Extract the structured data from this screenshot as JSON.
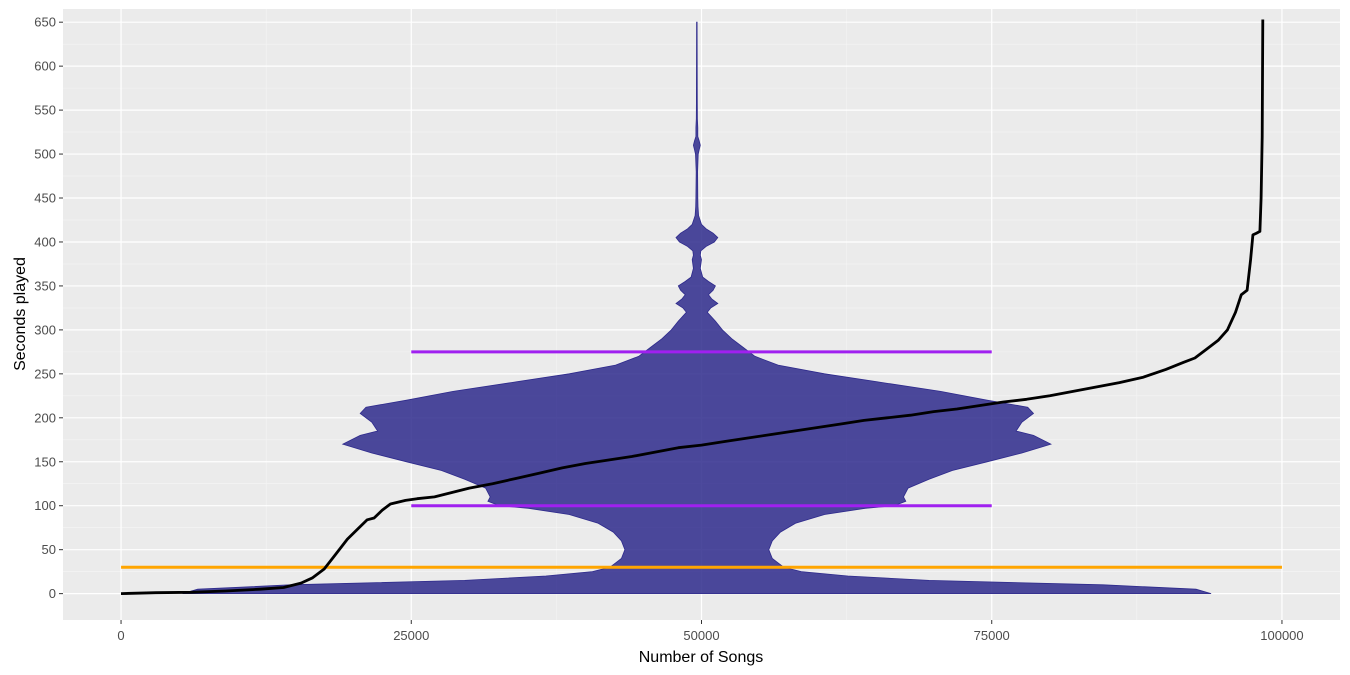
{
  "chart_data": {
    "type": "line",
    "title": "",
    "xlabel": "Number of Songs",
    "ylabel": "Seconds played",
    "xlim": [
      -5000,
      105000
    ],
    "ylim": [
      -30,
      665
    ],
    "x_ticks": [
      0,
      25000,
      50000,
      75000,
      100000
    ],
    "x_tick_labels": [
      "0",
      "25000",
      "50000",
      "75000",
      "100000"
    ],
    "y_ticks": [
      0,
      50,
      100,
      150,
      200,
      250,
      300,
      350,
      400,
      450,
      500,
      550,
      600,
      650
    ],
    "y_tick_labels": [
      "0",
      "50",
      "100",
      "150",
      "200",
      "250",
      "300",
      "350",
      "400",
      "450",
      "500",
      "550",
      "600",
      "650"
    ],
    "grid": true,
    "legend": "none",
    "violin": {
      "name": "",
      "center_x": 49600,
      "color": "#2e2a8c",
      "profile": [
        [
          0,
          44300
        ],
        [
          5,
          43000
        ],
        [
          10,
          35000
        ],
        [
          15,
          20000
        ],
        [
          20,
          13000
        ],
        [
          25,
          9000
        ],
        [
          30,
          7500
        ],
        [
          35,
          7000
        ],
        [
          40,
          6500
        ],
        [
          50,
          6200
        ],
        [
          60,
          6500
        ],
        [
          70,
          7200
        ],
        [
          80,
          8500
        ],
        [
          90,
          11000
        ],
        [
          97,
          14500
        ],
        [
          100,
          17000
        ],
        [
          105,
          18000
        ],
        [
          110,
          17800
        ],
        [
          120,
          18200
        ],
        [
          130,
          20000
        ],
        [
          140,
          22000
        ],
        [
          150,
          25000
        ],
        [
          160,
          28000
        ],
        [
          170,
          30500
        ],
        [
          180,
          29000
        ],
        [
          185,
          27500
        ],
        [
          195,
          28000
        ],
        [
          205,
          29000
        ],
        [
          212,
          28500
        ],
        [
          220,
          25000
        ],
        [
          230,
          21000
        ],
        [
          240,
          16000
        ],
        [
          250,
          11000
        ],
        [
          260,
          7000
        ],
        [
          270,
          5000
        ],
        [
          280,
          4000
        ],
        [
          290,
          3000
        ],
        [
          300,
          2200
        ],
        [
          310,
          1600
        ],
        [
          320,
          900
        ],
        [
          325,
          1200
        ],
        [
          330,
          1800
        ],
        [
          335,
          1300
        ],
        [
          340,
          1000
        ],
        [
          345,
          1400
        ],
        [
          350,
          1600
        ],
        [
          355,
          1000
        ],
        [
          360,
          500
        ],
        [
          370,
          300
        ],
        [
          380,
          400
        ],
        [
          385,
          300
        ],
        [
          390,
          350
        ],
        [
          395,
          800
        ],
        [
          400,
          1500
        ],
        [
          405,
          1800
        ],
        [
          410,
          1400
        ],
        [
          415,
          800
        ],
        [
          420,
          400
        ],
        [
          430,
          150
        ],
        [
          440,
          100
        ],
        [
          450,
          80
        ],
        [
          480,
          60
        ],
        [
          500,
          120
        ],
        [
          505,
          200
        ],
        [
          510,
          300
        ],
        [
          515,
          200
        ],
        [
          520,
          80
        ],
        [
          530,
          80
        ],
        [
          540,
          50
        ],
        [
          560,
          40
        ],
        [
          600,
          30
        ],
        [
          650,
          20
        ]
      ]
    },
    "series": [
      {
        "name": "",
        "color": "#000000",
        "points": [
          [
            0,
            0
          ],
          [
            3000,
            1
          ],
          [
            6000,
            1.5
          ],
          [
            9000,
            3
          ],
          [
            12000,
            5
          ],
          [
            14000,
            7
          ],
          [
            15500,
            12
          ],
          [
            16500,
            18
          ],
          [
            17500,
            28
          ],
          [
            18500,
            45
          ],
          [
            19500,
            62
          ],
          [
            20500,
            75
          ],
          [
            21200,
            84
          ],
          [
            21800,
            86
          ],
          [
            22500,
            95
          ],
          [
            23200,
            102
          ],
          [
            24500,
            106
          ],
          [
            25500,
            108
          ],
          [
            27000,
            110
          ],
          [
            28500,
            115
          ],
          [
            30000,
            120
          ],
          [
            32000,
            125
          ],
          [
            34000,
            131
          ],
          [
            36000,
            137
          ],
          [
            38000,
            143
          ],
          [
            40000,
            148
          ],
          [
            42000,
            152
          ],
          [
            44000,
            156
          ],
          [
            46000,
            161
          ],
          [
            48000,
            166
          ],
          [
            50000,
            169
          ],
          [
            52000,
            173
          ],
          [
            54000,
            177
          ],
          [
            56000,
            181
          ],
          [
            58000,
            185
          ],
          [
            60000,
            189
          ],
          [
            62000,
            193
          ],
          [
            64000,
            197
          ],
          [
            66000,
            200
          ],
          [
            68000,
            203
          ],
          [
            70000,
            207
          ],
          [
            72000,
            210
          ],
          [
            74000,
            214
          ],
          [
            76000,
            218
          ],
          [
            78000,
            221
          ],
          [
            80000,
            225
          ],
          [
            82000,
            230
          ],
          [
            84000,
            235
          ],
          [
            86000,
            240
          ],
          [
            88000,
            246
          ],
          [
            90000,
            255
          ],
          [
            91500,
            263
          ],
          [
            92500,
            268
          ],
          [
            93500,
            278
          ],
          [
            94500,
            288
          ],
          [
            95300,
            300
          ],
          [
            96000,
            320
          ],
          [
            96500,
            340
          ],
          [
            97000,
            345
          ],
          [
            97300,
            380
          ],
          [
            97500,
            408
          ],
          [
            97800,
            410
          ],
          [
            98100,
            412
          ],
          [
            98200,
            450
          ],
          [
            98300,
            520
          ],
          [
            98350,
            653
          ]
        ]
      }
    ],
    "hlines": [
      {
        "y": 30,
        "x_from": 0,
        "x_to": 100000,
        "color": "#ffa500"
      },
      {
        "y": 100,
        "x_from": 25000,
        "x_to": 75000,
        "color": "#a020f0"
      },
      {
        "y": 275,
        "x_from": 25000,
        "x_to": 75000,
        "color": "#a020f0"
      }
    ]
  }
}
